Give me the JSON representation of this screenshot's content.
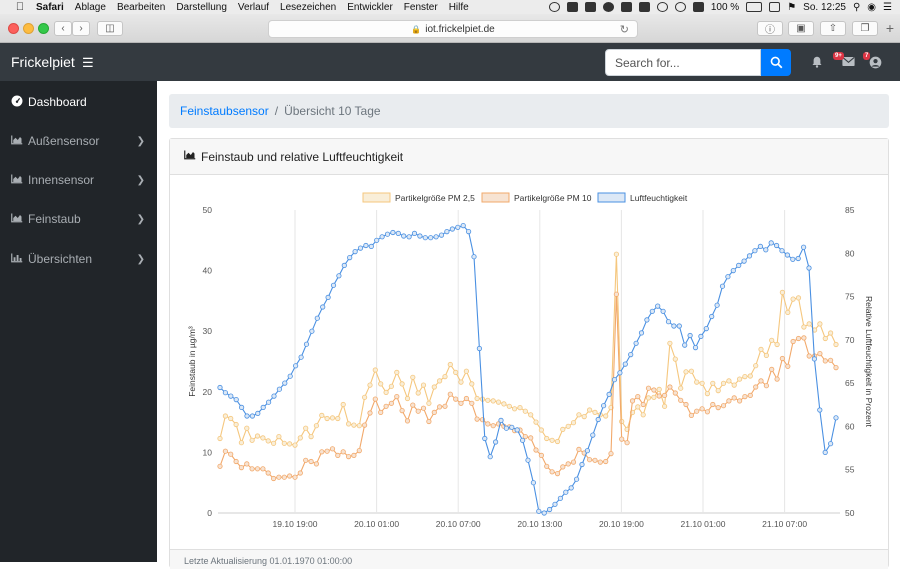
{
  "menubar": {
    "items": [
      "Safari",
      "Ablage",
      "Bearbeiten",
      "Darstellung",
      "Verlauf",
      "Lesezeichen",
      "Entwickler",
      "Fenster",
      "Hilfe"
    ],
    "battery": "100 %",
    "clock": "So. 12:25"
  },
  "browser": {
    "url": "iot.frickelpiet.de"
  },
  "navbar": {
    "brand": "Frickelpiet",
    "search_placeholder": "Search for...",
    "alerts_badge": "9+",
    "messages_badge": "7"
  },
  "sidebar": {
    "items": [
      {
        "label": "Dashboard",
        "icon": "dashboard-icon",
        "active": true
      },
      {
        "label": "Außensensor",
        "icon": "area-chart-icon"
      },
      {
        "label": "Innensensor",
        "icon": "area-chart-icon"
      },
      {
        "label": "Feinstaub",
        "icon": "area-chart-icon"
      },
      {
        "label": "Übersichten",
        "icon": "bar-chart-icon"
      }
    ]
  },
  "breadcrumb": {
    "link": "Feinstaubsensor",
    "current": "Übersicht 10 Tage"
  },
  "card": {
    "title": "Feinstaub und relative Luftfeuchtigkeit",
    "footer": "Letzte Aktualisierung 01.01.1970 01:00:00"
  },
  "chart_data": {
    "type": "line",
    "x_labels": [
      "19.10 19:00",
      "20.10 01:00",
      "20.10 07:00",
      "20.10 13:00",
      "20.10 19:00",
      "21.10 01:00",
      "21.10 07:00"
    ],
    "ylabel": "Feinstaub in µg/m³",
    "y2label": "Relative Luftfeuchtigkeit in Prozent",
    "ylim": [
      0,
      50
    ],
    "y_ticks": [
      0,
      10,
      20,
      30,
      40,
      50
    ],
    "y2lim": [
      50,
      85
    ],
    "y2_ticks": [
      50,
      55,
      60,
      65,
      70,
      75,
      80,
      85
    ],
    "legend_position": "top",
    "grid": "vertical",
    "series": [
      {
        "name": "Partikelgröße PM 2,5",
        "axis": "left",
        "color": "#f5c77e",
        "values": [
          12.3,
          16,
          15.6,
          14.6,
          11.6,
          14,
          12,
          12.7,
          12.4,
          11.9,
          11.5,
          12.6,
          11.5,
          11.4,
          11.2,
          12.4,
          14,
          12.6,
          14.4,
          16.1,
          15.6,
          15.7,
          15.6,
          17.9,
          14.7,
          14.5,
          14.4,
          19.1,
          21.1,
          23.6,
          21.3,
          19.9,
          20.9,
          23.2,
          21.3,
          18.9,
          22.4,
          19.8,
          21.1,
          18.1,
          20.8,
          21.8,
          22.5,
          24.5,
          23.2,
          21.6,
          23.4,
          21.3,
          18.9,
          18.8,
          18.6,
          18.5,
          18.3,
          18,
          17.6,
          17.2,
          17.4,
          16.8,
          16.2,
          15,
          13.7,
          12.3,
          12,
          11.8,
          13.8,
          14.3,
          14.9,
          16.2,
          15.9,
          17,
          16.6,
          16.2,
          16,
          17.4,
          42.7,
          15.1,
          13.8,
          16.6,
          17.5,
          16.2,
          19,
          19.1,
          20.4,
          17.6,
          28,
          25.4,
          20.6,
          23.3,
          23.4,
          21.6,
          21.4,
          19.7,
          21.4,
          20.2,
          21.4,
          21.8,
          21.1,
          22.1,
          22.5,
          22.6,
          24.3,
          27,
          26,
          28.5,
          27.8,
          36.4,
          33.1,
          35.3,
          35.5,
          30.7,
          31.2,
          30.2,
          31.2,
          28.8,
          29.7,
          27.8
        ]
      },
      {
        "name": "Partikelgröße PM 10",
        "axis": "left",
        "color": "#f2a96b",
        "values": [
          7.7,
          10.2,
          9.7,
          8.5,
          7.5,
          8.1,
          7.3,
          7.3,
          7.3,
          6.6,
          5.7,
          5.9,
          5.9,
          6.1,
          5.9,
          6.6,
          8.7,
          8.5,
          8.1,
          10.1,
          10.2,
          10.6,
          9.5,
          10.1,
          9.3,
          9.5,
          10.3,
          14.5,
          16.5,
          18.8,
          16.6,
          17.6,
          18.1,
          19.2,
          16.9,
          15.2,
          17.8,
          16.8,
          17.3,
          15.1,
          16.6,
          17.5,
          17.6,
          19.6,
          18.8,
          18.1,
          18.9,
          18.1,
          15.5,
          15.4,
          14.7,
          14.4,
          14.7,
          14.3,
          14.2,
          13.6,
          13.7,
          12.6,
          12.4,
          10.4,
          9.5,
          7.7,
          6.8,
          6.5,
          7.6,
          8.1,
          8.4,
          10.5,
          9.9,
          8.8,
          8.7,
          8.4,
          8.5,
          9.8,
          36.1,
          12.2,
          11.6,
          18.5,
          19.2,
          17.9,
          20.6,
          20.3,
          19.3,
          19.4,
          20.8,
          19.8,
          18.6,
          17.9,
          16.1,
          16.8,
          17.2,
          16.7,
          17.9,
          17.4,
          17.7,
          18.5,
          19,
          18.5,
          19.2,
          19.4,
          20.8,
          21.8,
          21,
          23.7,
          22.1,
          25.5,
          24.2,
          28.3,
          28.8,
          28.9,
          25.9,
          25.9,
          26.3,
          25.1,
          25.2,
          24
        ]
      },
      {
        "name": "Luftfeuchtigkeit",
        "axis": "right",
        "color": "#4a90e2",
        "values": [
          64.5,
          63.9,
          63.5,
          63.1,
          62.2,
          61.2,
          61.2,
          61.5,
          62.2,
          62.8,
          63.5,
          64.3,
          65,
          65.8,
          67,
          68,
          69.5,
          71,
          72.5,
          73.8,
          74.9,
          76.3,
          77.4,
          78.6,
          79.5,
          80.2,
          80.6,
          80.9,
          80.8,
          81.5,
          81.9,
          82.2,
          82.4,
          82.3,
          82,
          81.9,
          82.3,
          82,
          81.8,
          81.8,
          81.9,
          82.1,
          82.5,
          82.8,
          83,
          83.2,
          82.5,
          79.6,
          69,
          58.6,
          56.5,
          58.2,
          60.7,
          59.8,
          59.9,
          59.6,
          58.4,
          56.1,
          53.5,
          50.2,
          50,
          50.4,
          51,
          51.7,
          52.4,
          52.9,
          53.9,
          55.6,
          57.2,
          59,
          60.8,
          62.4,
          63.7,
          65.4,
          66.2,
          67.2,
          68.3,
          69.6,
          70.8,
          72.3,
          73.3,
          73.9,
          73.3,
          72.1,
          71.6,
          71.6,
          69.4,
          70.5,
          69.1,
          70.4,
          71.3,
          72.7,
          74,
          76.2,
          77.3,
          78,
          78.6,
          79.1,
          79.7,
          80.3,
          80.8,
          80.4,
          81.2,
          80.9,
          80.3,
          79.8,
          79.3,
          79.4,
          80.7,
          78.3,
          67.8,
          61.9,
          57,
          58,
          61
        ]
      }
    ]
  }
}
